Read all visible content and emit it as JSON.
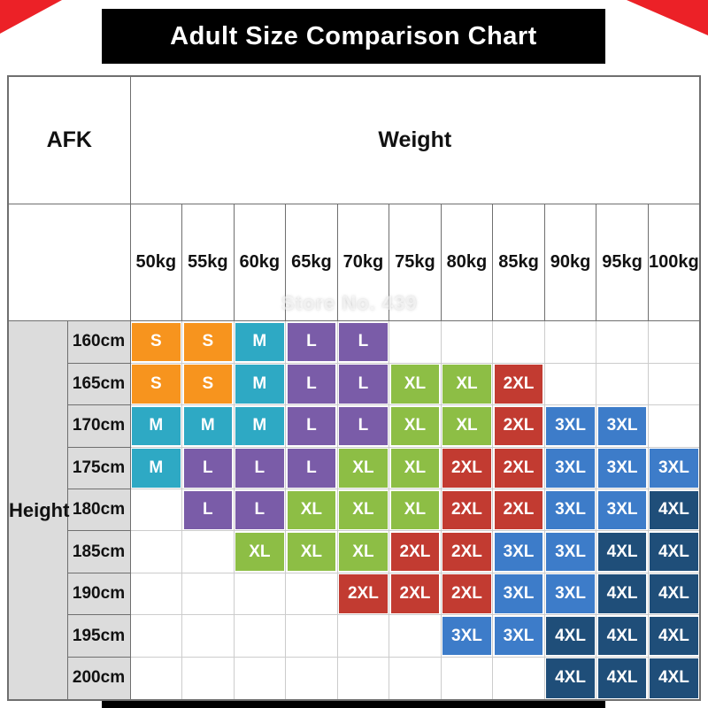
{
  "title": "Adult Size Comparison Chart",
  "watermark": "Store No. 439",
  "header": {
    "corner_label": "AFK",
    "weight_label": "Weight",
    "height_label": "Height"
  },
  "size_colors": {
    "S": "#f7941e",
    "M": "#2ea9c4",
    "L": "#7a5ca8",
    "XL": "#8dbe45",
    "2XL": "#c23b31",
    "3XL": "#3d7cc9",
    "4XL": "#1f4e79"
  },
  "accent_colors": {
    "corner_ribbon": "#ec2127",
    "title_bar": "#000000",
    "header_gray": "#dcdcdc"
  },
  "chart_data": {
    "type": "table",
    "title": "Adult Size Comparison Chart",
    "col_axis_label": "Weight",
    "row_axis_label": "Height",
    "columns": [
      "50kg",
      "55kg",
      "60kg",
      "65kg",
      "70kg",
      "75kg",
      "80kg",
      "85kg",
      "90kg",
      "95kg",
      "100kg"
    ],
    "rows": [
      "160cm",
      "165cm",
      "170cm",
      "175cm",
      "180cm",
      "185cm",
      "190cm",
      "195cm",
      "200cm"
    ],
    "values": [
      [
        "S",
        "S",
        "M",
        "L",
        "L",
        "",
        "",
        "",
        "",
        "",
        ""
      ],
      [
        "S",
        "S",
        "M",
        "L",
        "L",
        "XL",
        "XL",
        "2XL",
        "",
        "",
        ""
      ],
      [
        "M",
        "M",
        "M",
        "L",
        "L",
        "XL",
        "XL",
        "2XL",
        "3XL",
        "3XL",
        ""
      ],
      [
        "M",
        "L",
        "L",
        "L",
        "XL",
        "XL",
        "2XL",
        "2XL",
        "3XL",
        "3XL",
        "3XL"
      ],
      [
        "",
        "L",
        "L",
        "XL",
        "XL",
        "XL",
        "2XL",
        "2XL",
        "3XL",
        "3XL",
        "4XL"
      ],
      [
        "",
        "",
        "XL",
        "XL",
        "XL",
        "2XL",
        "2XL",
        "3XL",
        "3XL",
        "4XL",
        "4XL"
      ],
      [
        "",
        "",
        "",
        "",
        "2XL",
        "2XL",
        "2XL",
        "3XL",
        "3XL",
        "4XL",
        "4XL"
      ],
      [
        "",
        "",
        "",
        "",
        "",
        "",
        "3XL",
        "3XL",
        "4XL",
        "4XL",
        "4XL"
      ],
      [
        "",
        "",
        "",
        "",
        "",
        "",
        "",
        "",
        "4XL",
        "4XL",
        "4XL"
      ]
    ]
  }
}
